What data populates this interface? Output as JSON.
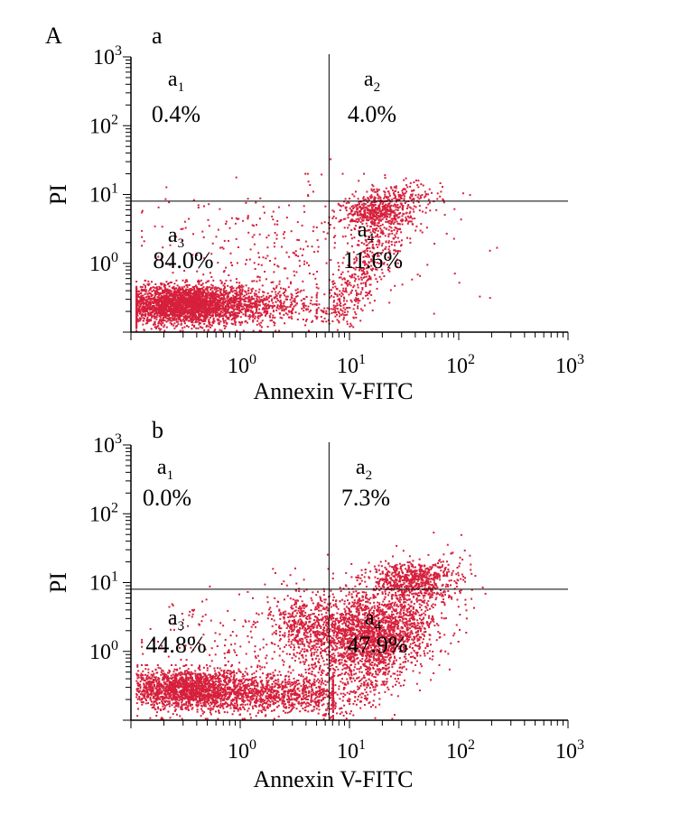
{
  "figure_label": "A",
  "chart_data": [
    {
      "type": "scatter",
      "panel_label": "a",
      "xlabel": "Annexin V-FITC",
      "ylabel": "PI",
      "x_scale": "log",
      "y_scale": "log",
      "xlim": [
        0.1,
        1000
      ],
      "ylim": [
        0.1,
        1000
      ],
      "x_ticks": [
        {
          "base": "10",
          "exp": "0",
          "value": 1
        },
        {
          "base": "10",
          "exp": "1",
          "value": 10
        },
        {
          "base": "10",
          "exp": "2",
          "value": 100
        },
        {
          "base": "10",
          "exp": "3",
          "value": 1000
        }
      ],
      "y_ticks": [
        {
          "base": "10",
          "exp": "0",
          "value": 1
        },
        {
          "base": "10",
          "exp": "1",
          "value": 10
        },
        {
          "base": "10",
          "exp": "2",
          "value": 100
        },
        {
          "base": "10",
          "exp": "3",
          "value": 1000
        }
      ],
      "gate": {
        "x": 6.5,
        "y": 8.0
      },
      "quadrants": [
        {
          "label": "a",
          "sub": "1",
          "value": "0.4%",
          "pos": "upper-left"
        },
        {
          "label": "a",
          "sub": "2",
          "value": "4.0%",
          "pos": "upper-right"
        },
        {
          "label": "a",
          "sub": "3",
          "value": "84.0%",
          "pos": "lower-left"
        },
        {
          "label": "a",
          "sub": "4",
          "value": "11.6%",
          "pos": "lower-right"
        }
      ],
      "quadrant_percent": {
        "a1": 0.4,
        "a2": 4.0,
        "a3": 84.0,
        "a4": 11.6
      },
      "dot_color": "#d6203c"
    },
    {
      "type": "scatter",
      "panel_label": "b",
      "xlabel": "Annexin V-FITC",
      "ylabel": "PI",
      "x_scale": "log",
      "y_scale": "log",
      "xlim": [
        0.1,
        1000
      ],
      "ylim": [
        0.1,
        1000
      ],
      "x_ticks": [
        {
          "base": "10",
          "exp": "0",
          "value": 1
        },
        {
          "base": "10",
          "exp": "1",
          "value": 10
        },
        {
          "base": "10",
          "exp": "2",
          "value": 100
        },
        {
          "base": "10",
          "exp": "3",
          "value": 1000
        }
      ],
      "y_ticks": [
        {
          "base": "10",
          "exp": "0",
          "value": 1
        },
        {
          "base": "10",
          "exp": "1",
          "value": 10
        },
        {
          "base": "10",
          "exp": "2",
          "value": 100
        },
        {
          "base": "10",
          "exp": "3",
          "value": 1000
        }
      ],
      "gate": {
        "x": 6.5,
        "y": 8.0
      },
      "quadrants": [
        {
          "label": "a",
          "sub": "1",
          "value": "0.0%",
          "pos": "upper-left"
        },
        {
          "label": "a",
          "sub": "2",
          "value": "7.3%",
          "pos": "upper-right"
        },
        {
          "label": "a",
          "sub": "3",
          "value": "44.8%",
          "pos": "lower-left"
        },
        {
          "label": "a",
          "sub": "4",
          "value": "47.9%",
          "pos": "lower-right"
        }
      ],
      "quadrant_percent": {
        "a1": 0.0,
        "a2": 7.3,
        "a3": 44.8,
        "a4": 47.9
      },
      "dot_color": "#d6203c"
    }
  ]
}
